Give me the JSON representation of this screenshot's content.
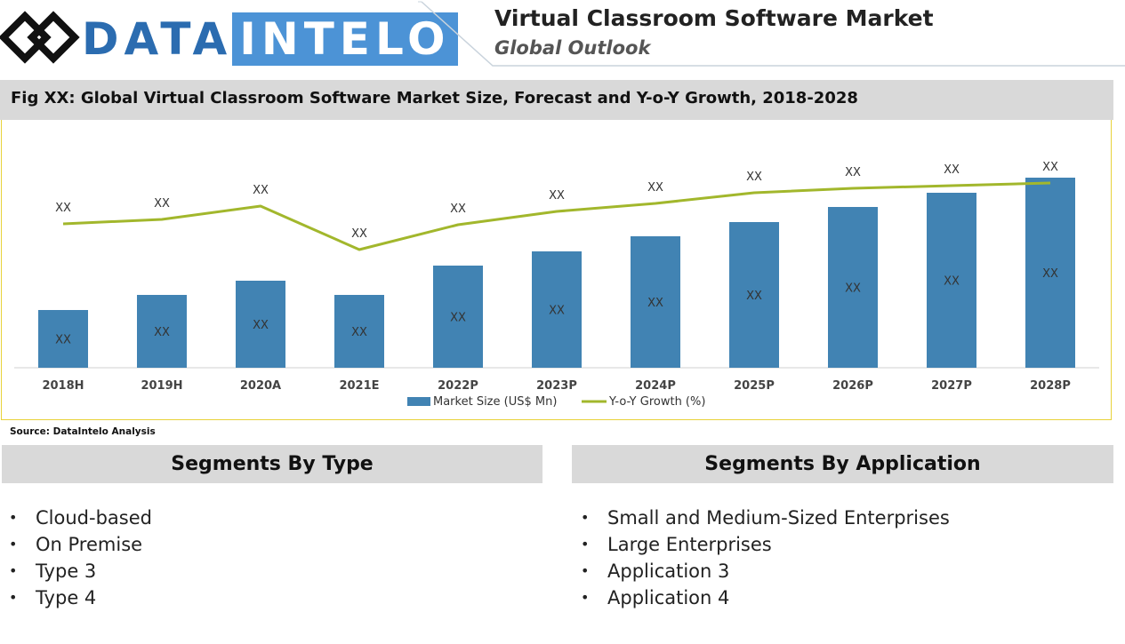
{
  "header": {
    "logo_left": "DATA",
    "logo_right": "INTELO",
    "title": "Virtual Classroom Software Market",
    "subtitle": "Global Outlook"
  },
  "figure": {
    "title": "Fig XX: Global Virtual Classroom Software Market Size, Forecast and Y-o-Y Growth, 2018-2028",
    "source": "Source: DataIntelo Analysis"
  },
  "colors": {
    "bar": "#4183b3",
    "line": "#a2b72c",
    "accent": "#4c93d6",
    "frame": "#e8d23a"
  },
  "chart_data": {
    "type": "bar",
    "categories": [
      "2018H",
      "2019H",
      "2020A",
      "2021E",
      "2022P",
      "2023P",
      "2024P",
      "2025P",
      "2026P",
      "2027P",
      "2028P"
    ],
    "series": [
      {
        "name": "Market Size (US$ Mn)",
        "type": "bar",
        "values": [
          65,
          82,
          98,
          82,
          115,
          131,
          148,
          164,
          181,
          197,
          214
        ],
        "labels": [
          "XX",
          "XX",
          "XX",
          "XX",
          "XX",
          "XX",
          "XX",
          "XX",
          "XX",
          "XX",
          "XX"
        ]
      },
      {
        "name": "Y-o-Y Growth (%)",
        "type": "line",
        "values": [
          162,
          167,
          182,
          133,
          161,
          176,
          185,
          197,
          202,
          205,
          208
        ],
        "labels": [
          "XX",
          "XX",
          "XX",
          "XX",
          "XX",
          "XX",
          "XX",
          "XX",
          "XX",
          "XX",
          "XX"
        ]
      }
    ],
    "ylim": [
      0,
      275
    ],
    "legend": "bottom-center",
    "grid": false
  },
  "segments": {
    "type": {
      "title": "Segments By Type",
      "items": [
        "Cloud-based",
        "On Premise",
        "Type 3",
        "Type 4"
      ]
    },
    "application": {
      "title": "Segments By Application",
      "items": [
        "Small and Medium-Sized Enterprises",
        "Large Enterprises",
        "Application 3",
        "Application 4"
      ]
    }
  },
  "bullet_char": "•"
}
